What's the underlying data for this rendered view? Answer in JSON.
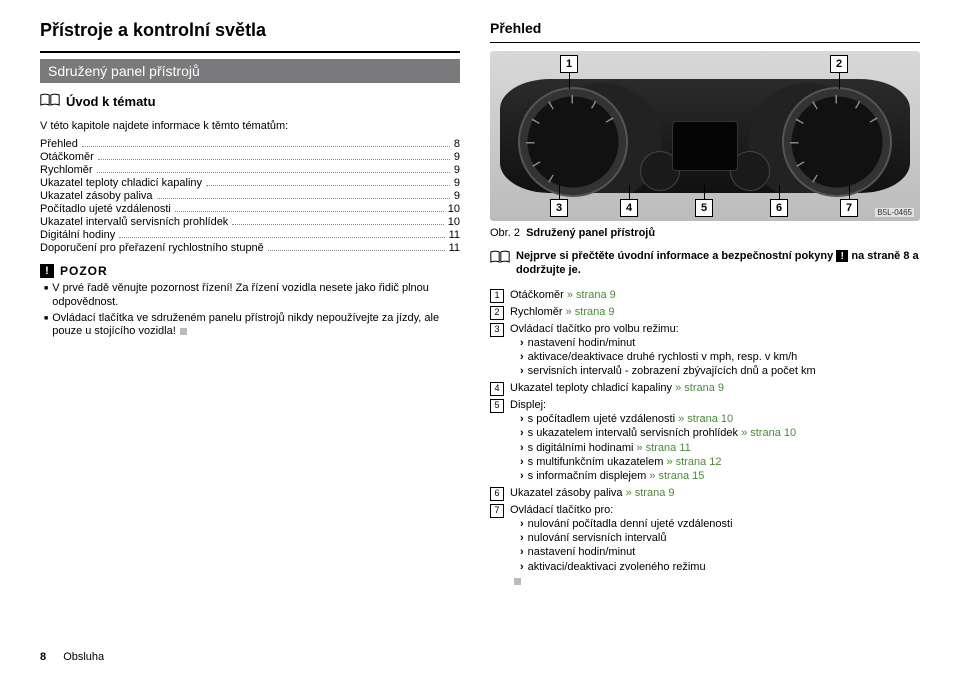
{
  "left": {
    "h1": "Přístroje a kontrolní světla",
    "subhead": "Sdružený panel přístrojů",
    "intro_title": "Úvod k tématu",
    "lead": "V této kapitole najdete informace k těmto tématům:",
    "toc": [
      {
        "label": "Přehled",
        "page": "8"
      },
      {
        "label": "Otáčkoměr",
        "page": "9"
      },
      {
        "label": "Rychloměr",
        "page": "9"
      },
      {
        "label": "Ukazatel teploty chladicí kapaliny",
        "page": "9"
      },
      {
        "label": "Ukazatel zásoby paliva",
        "page": "9"
      },
      {
        "label": "Počítadlo ujeté vzdálenosti",
        "page": "10"
      },
      {
        "label": "Ukazatel intervalů servisních prohlídek",
        "page": "10"
      },
      {
        "label": "Digitální hodiny",
        "page": "11"
      },
      {
        "label": "Doporučení pro přeřazení rychlostního stupně",
        "page": "11"
      }
    ],
    "pozor_title": "POZOR",
    "pozor_items": [
      "V prvé řadě věnujte pozornost řízení! Za řízení vozidla nesete jako řidič plnou odpovědnost.",
      "Ovládací tlačítka ve sdruženém panelu přístrojů nikdy nepoužívejte za jízdy, ale pouze u stojícího vozidla!"
    ]
  },
  "right": {
    "title": "Přehled",
    "img_code": "B5L-0465",
    "callouts_top": [
      "1",
      "2"
    ],
    "callouts_bot": [
      "3",
      "4",
      "5",
      "6",
      "7"
    ],
    "caption_prefix": "Obr. 2",
    "caption_text": "Sdružený panel přístrojů",
    "note_a": "Nejprve si přečtěte úvodní informace a bezpečnostní pokyny",
    "note_b": "na straně 8 a dodržujte je.",
    "items": [
      {
        "n": "1",
        "body": [
          {
            "t": "Otáčkoměr "
          },
          {
            "t": "» strana 9",
            "g": true
          }
        ]
      },
      {
        "n": "2",
        "body": [
          {
            "t": "Rychloměr "
          },
          {
            "t": "» strana 9",
            "g": true
          }
        ]
      },
      {
        "n": "3",
        "body": [
          {
            "t": "Ovládací tlačítko pro volbu režimu:"
          }
        ],
        "sub": [
          "nastavení hodin/minut",
          "aktivace/deaktivace druhé rychlosti v mph, resp. v km/h",
          "servisních intervalů - zobrazení zbývajících dnů a počet km"
        ]
      },
      {
        "n": "4",
        "body": [
          {
            "t": "Ukazatel teploty chladicí kapaliny "
          },
          {
            "t": "» strana 9",
            "g": true
          }
        ]
      },
      {
        "n": "5",
        "body": [
          {
            "t": "Displej:"
          }
        ],
        "sub": [
          {
            "pre": "s počítadlem ujeté vzdálenosti ",
            "link": "» strana 10"
          },
          {
            "pre": "s ukazatelem intervalů servisních prohlídek ",
            "link": "» strana 10"
          },
          {
            "pre": "s digitálními hodinami ",
            "link": "» strana 11"
          },
          {
            "pre": "s multifunkčním ukazatelem ",
            "link": "» strana 12"
          },
          {
            "pre": "s informačním displejem ",
            "link": "» strana 15"
          }
        ]
      },
      {
        "n": "6",
        "body": [
          {
            "t": "Ukazatel zásoby paliva "
          },
          {
            "t": "» strana 9",
            "g": true
          }
        ]
      },
      {
        "n": "7",
        "body": [
          {
            "t": "Ovládací tlačítko pro:"
          }
        ],
        "sub": [
          "nulování počítadla denní ujeté vzdálenosti",
          "nulování servisních intervalů",
          "nastavení hodin/minut",
          "aktivaci/deaktivaci zvoleného režimu"
        ]
      }
    ]
  },
  "footer": {
    "page": "8",
    "section": "Obsluha"
  },
  "colors": {
    "green": "#4a8a3a",
    "grey_bar": "#7a7a7c"
  }
}
